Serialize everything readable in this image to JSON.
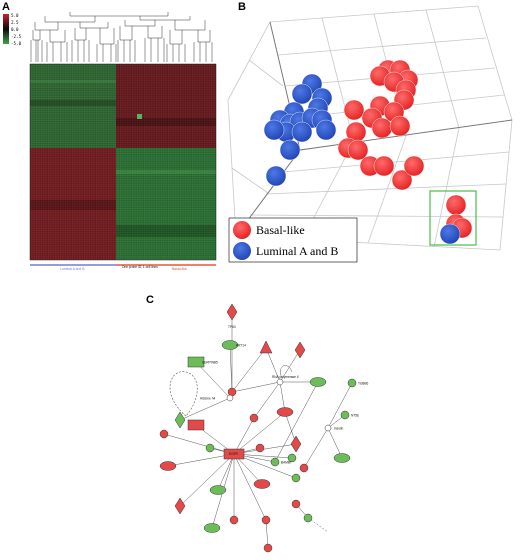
{
  "figure": {
    "panel_labels": [
      "A",
      "B",
      "C"
    ]
  },
  "panelA": {
    "colorbar_ticks": [
      "5.0",
      "2.5",
      "0.0",
      "-2.5",
      "-5.0"
    ],
    "colors": {
      "high": "#c0262b",
      "mid": "#0b0b0b",
      "low": "#3fa447"
    },
    "group_labels": [
      "Luminal A and B",
      "Basal-like"
    ],
    "group_colors": [
      "#6f7fd0",
      "#e8553a"
    ],
    "footnote": "One probe ID, 1 cell lines"
  },
  "panelB": {
    "legend": [
      {
        "label": "Basal-like",
        "color": "#ee2e2e"
      },
      {
        "label": "Luminal A and B",
        "color": "#2d54c4"
      }
    ],
    "highlight_box_color": "#5bbf5b"
  },
  "panelC": {
    "up_color": "#e24a4a",
    "down_color": "#6cbd57",
    "nodes": [
      {
        "id": "TP63",
        "label": "TP63",
        "shape": "diamond",
        "reg": "up"
      },
      {
        "id": "n2",
        "label": "KRT14",
        "shape": "ellipse",
        "reg": "down"
      },
      {
        "id": "n3",
        "label": "",
        "shape": "triangle",
        "reg": "up"
      },
      {
        "id": "n4",
        "label": "",
        "shape": "diamond",
        "reg": "up"
      },
      {
        "id": "n5",
        "label": "SERPINB5",
        "shape": "rect",
        "reg": "down"
      },
      {
        "id": "hub1",
        "label": "",
        "shape": "circle",
        "reg": "up"
      },
      {
        "id": "pol2",
        "label": "RNA polymerase II",
        "shape": "circle",
        "reg": "none"
      },
      {
        "id": "hist",
        "label": "Histone h4",
        "shape": "circle",
        "reg": "none"
      },
      {
        "id": "n9",
        "label": "",
        "shape": "diamond",
        "reg": "down"
      },
      {
        "id": "n10",
        "label": "",
        "shape": "ellipse",
        "reg": "up"
      },
      {
        "id": "n11",
        "label": "",
        "shape": "ellipse",
        "reg": "down"
      },
      {
        "id": "n12",
        "label": "TUBB6",
        "shape": "circle",
        "reg": "down"
      },
      {
        "id": "n13",
        "label": "NT5E",
        "shape": "circle",
        "reg": "down"
      },
      {
        "id": "ins",
        "label": "Insulin",
        "shape": "circle",
        "reg": "none"
      },
      {
        "id": "n15",
        "label": "",
        "shape": "rect",
        "reg": "up"
      },
      {
        "id": "n16",
        "label": "",
        "shape": "circle",
        "reg": "up"
      },
      {
        "id": "n17",
        "label": "",
        "shape": "circle",
        "reg": "down"
      },
      {
        "id": "n18",
        "label": "",
        "shape": "circle",
        "reg": "up"
      },
      {
        "id": "n19",
        "label": "",
        "shape": "diamond",
        "reg": "up"
      },
      {
        "id": "n20",
        "label": "",
        "shape": "circle",
        "reg": "up"
      },
      {
        "id": "n21",
        "label": "",
        "shape": "circle",
        "reg": "down"
      },
      {
        "id": "n22",
        "label": "",
        "shape": "ellipse",
        "reg": "down"
      },
      {
        "id": "n23",
        "label": "",
        "shape": "ellipse",
        "reg": "up"
      },
      {
        "id": "EGFR",
        "label": "EGFR",
        "shape": "rect",
        "reg": "up"
      },
      {
        "id": "n25",
        "label": "BAMBI",
        "shape": "circle",
        "reg": "down"
      },
      {
        "id": "n26",
        "label": "",
        "shape": "circle",
        "reg": "down"
      },
      {
        "id": "n27",
        "label": "",
        "shape": "circle",
        "reg": "up"
      },
      {
        "id": "n28",
        "label": "",
        "shape": "ellipse",
        "reg": "down"
      },
      {
        "id": "n29",
        "label": "",
        "shape": "ellipse",
        "reg": "up"
      },
      {
        "id": "n30",
        "label": "",
        "shape": "diamond",
        "reg": "up"
      },
      {
        "id": "n31",
        "label": "",
        "shape": "circle",
        "reg": "up"
      },
      {
        "id": "n32",
        "label": "",
        "shape": "circle",
        "reg": "up"
      },
      {
        "id": "n33",
        "label": "",
        "shape": "ellipse",
        "reg": "down"
      },
      {
        "id": "n34",
        "label": "",
        "shape": "circle",
        "reg": "up"
      },
      {
        "id": "n35",
        "label": "",
        "shape": "circle",
        "reg": "down"
      },
      {
        "id": "n36",
        "label": "",
        "shape": "circle",
        "reg": "up"
      }
    ]
  }
}
